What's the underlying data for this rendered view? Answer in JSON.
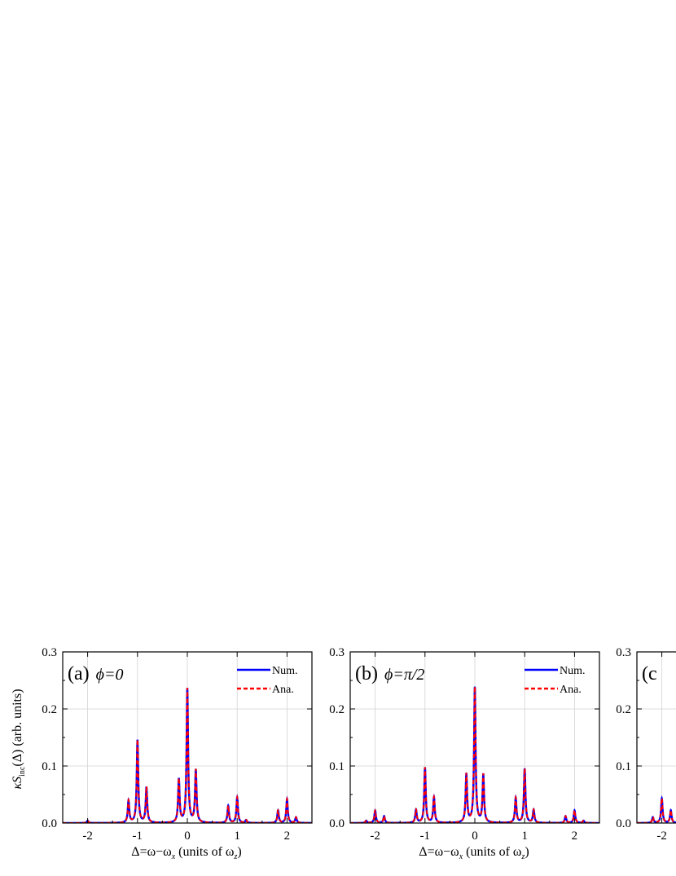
{
  "colors": {
    "num": "#0000ff",
    "ana": "#ff0000",
    "grid": "#d3d3d3",
    "axis": "#000000"
  },
  "figure": {
    "ylabel_prefix": "κ",
    "ylabel_S": "S",
    "ylabel_sub": "inc",
    "ylabel_suffix": "(Δ) (arb. units)",
    "xlabel_main": "Δ=ω−ω",
    "xlabel_sub_x": "x",
    "xlabel_mid": " (units of ω",
    "xlabel_sub_z": "z",
    "xlabel_end": ")"
  },
  "chart_data": [
    {
      "type": "line",
      "panel_label": "(a)",
      "panel_condition": "ϕ=0",
      "legend": [
        "Num.",
        "Ana."
      ],
      "legend_placement": "top-right",
      "grid": true,
      "xlim": [
        -2.5,
        2.5
      ],
      "ylim": [
        0,
        0.3
      ],
      "xticks": [
        -2,
        -1,
        0,
        1,
        2
      ],
      "xtick_labels": [
        "-2",
        "-1",
        "0",
        "1",
        "2"
      ],
      "yticks": [
        0.0,
        0.1,
        0.2,
        0.3
      ],
      "ytick_labels": [
        "0.0",
        "0.1",
        "0.2",
        "0.3"
      ],
      "peak_width": 0.018,
      "peaks": [
        {
          "x": -2.0,
          "y": 0.004
        },
        {
          "x": -1.18,
          "y": 0.039
        },
        {
          "x": -1.0,
          "y": 0.145
        },
        {
          "x": -0.82,
          "y": 0.062
        },
        {
          "x": -0.17,
          "y": 0.076
        },
        {
          "x": 0.0,
          "y": 0.235
        },
        {
          "x": 0.17,
          "y": 0.092
        },
        {
          "x": 0.82,
          "y": 0.03
        },
        {
          "x": 1.0,
          "y": 0.045
        },
        {
          "x": 1.18,
          "y": 0.005
        },
        {
          "x": 1.82,
          "y": 0.022
        },
        {
          "x": 2.0,
          "y": 0.042
        },
        {
          "x": 2.18,
          "y": 0.01
        }
      ],
      "series": [
        {
          "name": "Num."
        },
        {
          "name": "Ana."
        }
      ]
    },
    {
      "type": "line",
      "panel_label": "(b)",
      "panel_condition": "ϕ=π/2",
      "legend": [
        "Num.",
        "Ana."
      ],
      "legend_placement": "top-right",
      "grid": true,
      "xlim": [
        -2.5,
        2.5
      ],
      "ylim": [
        0,
        0.3
      ],
      "xticks": [
        -2,
        -1,
        0,
        1,
        2
      ],
      "xtick_labels": [
        "-2",
        "-1",
        "0",
        "1",
        "2"
      ],
      "yticks": [
        0.0,
        0.1,
        0.2,
        0.3
      ],
      "ytick_labels": [
        "0.0",
        "0.1",
        "0.2",
        "0.3"
      ],
      "peak_width": 0.018,
      "peaks": [
        {
          "x": -2.18,
          "y": 0.004
        },
        {
          "x": -2.0,
          "y": 0.022
        },
        {
          "x": -1.82,
          "y": 0.012
        },
        {
          "x": -1.18,
          "y": 0.023
        },
        {
          "x": -1.0,
          "y": 0.097
        },
        {
          "x": -0.82,
          "y": 0.045
        },
        {
          "x": -0.17,
          "y": 0.085
        },
        {
          "x": 0.0,
          "y": 0.237
        },
        {
          "x": 0.17,
          "y": 0.084
        },
        {
          "x": 0.82,
          "y": 0.044
        },
        {
          "x": 1.0,
          "y": 0.095
        },
        {
          "x": 1.18,
          "y": 0.023
        },
        {
          "x": 1.82,
          "y": 0.012
        },
        {
          "x": 2.0,
          "y": 0.022
        },
        {
          "x": 2.18,
          "y": 0.004
        }
      ],
      "series": [
        {
          "name": "Num."
        },
        {
          "name": "Ana."
        }
      ]
    },
    {
      "type": "line",
      "panel_label": "(c",
      "grid": true,
      "xlim": [
        -2.5,
        2.5
      ],
      "ylim": [
        0,
        0.3
      ],
      "xticks": [
        -2
      ],
      "xtick_labels": [
        "-2"
      ],
      "yticks": [
        0.0,
        0.1,
        0.2,
        0.3
      ],
      "ytick_labels": [
        "0.0",
        "0.1",
        "0.2",
        "0.3"
      ],
      "peak_width": 0.018,
      "peaks": [
        {
          "x": -2.18,
          "y": 0.01
        },
        {
          "x": -2.0,
          "y": 0.043
        },
        {
          "x": -1.82,
          "y": 0.022
        }
      ],
      "series": [
        {
          "name": "Num."
        },
        {
          "name": "Ana."
        }
      ]
    }
  ]
}
